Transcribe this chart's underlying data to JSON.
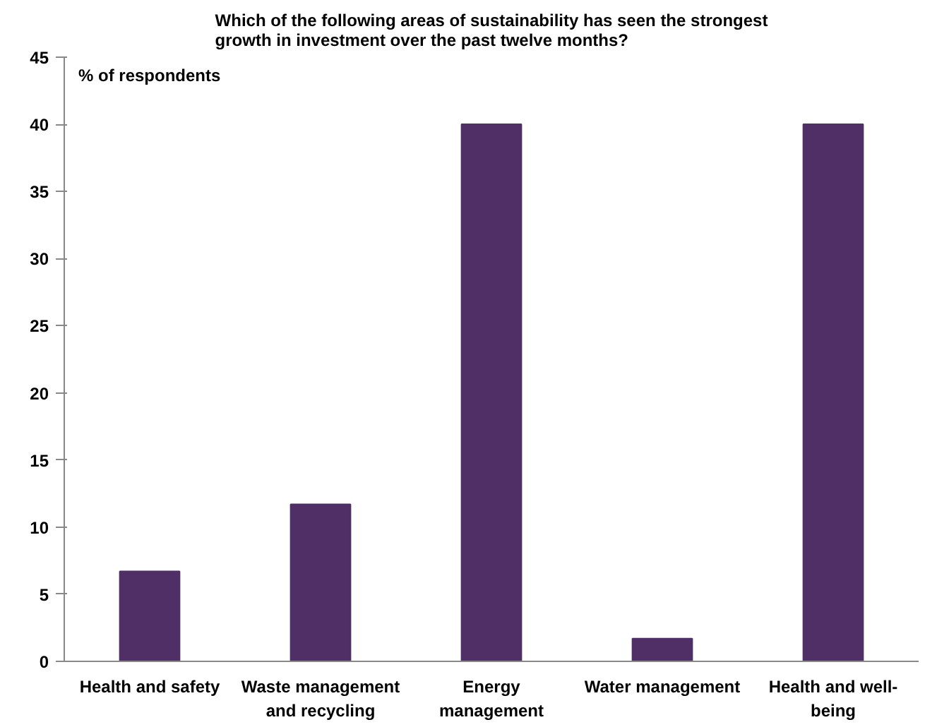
{
  "chart_data": {
    "type": "bar",
    "title": "Which of the following areas of sustainability has seen the strongest\ngrowth in investment over the past twelve months?",
    "ylabel": "% of respondents",
    "categories": [
      "Health and safety",
      "Waste management\nand recycling",
      "Energy\nmanagement",
      "Water management",
      "Health and well-\nbeing"
    ],
    "values": [
      6.7,
      11.7,
      40,
      1.7,
      40
    ],
    "color": "#4f2f66",
    "ylim": [
      0,
      45
    ],
    "yticks": [
      0,
      5,
      10,
      15,
      20,
      25,
      30,
      35,
      40,
      45
    ],
    "grid": false
  }
}
